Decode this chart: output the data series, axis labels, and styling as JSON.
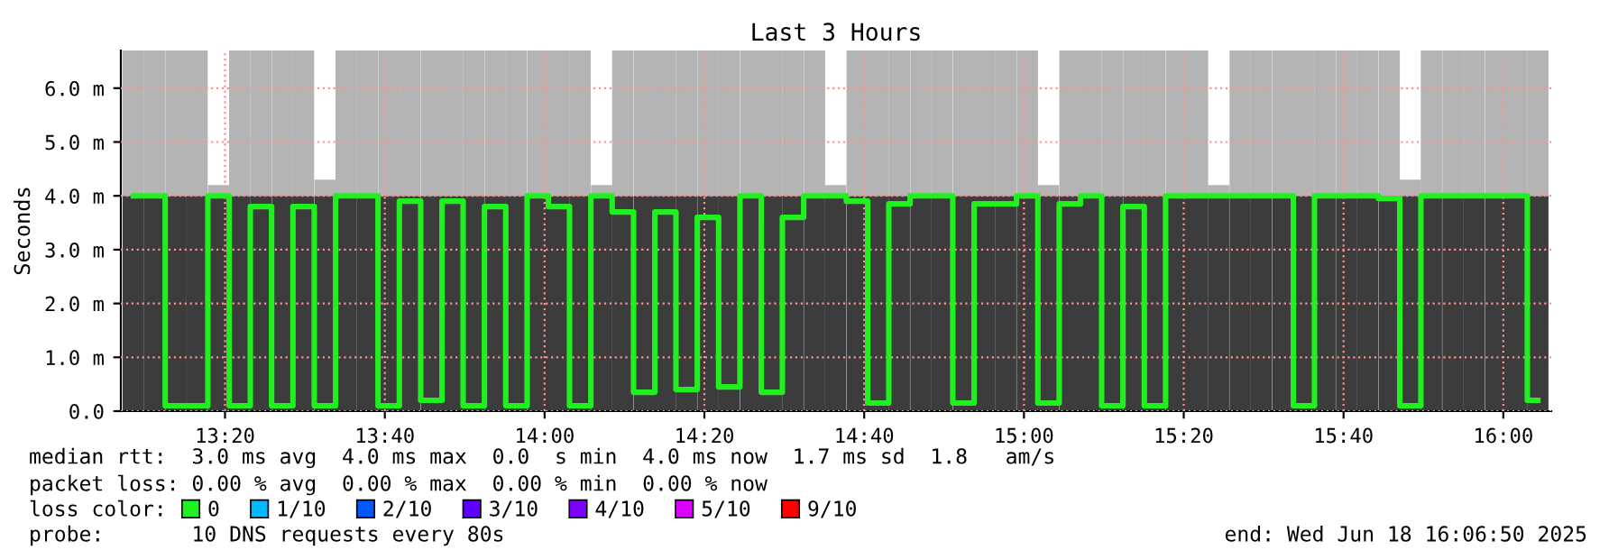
{
  "chart_data": {
    "type": "bar",
    "title": "Last 3 Hours",
    "ylabel": "Seconds",
    "stacked": true,
    "x": [
      13.142,
      13.186,
      13.231,
      13.275,
      13.32,
      13.364,
      13.408,
      13.453,
      13.497,
      13.542,
      13.586,
      13.63,
      13.675,
      13.719,
      13.764,
      13.808,
      13.852,
      13.897,
      13.941,
      13.986,
      14.03,
      14.074,
      14.119,
      14.163,
      14.208,
      14.252,
      14.296,
      14.341,
      14.385,
      14.43,
      14.474,
      14.518,
      14.563,
      14.607,
      14.652,
      14.696,
      14.74,
      14.785,
      14.829,
      14.874,
      14.918,
      14.962,
      15.007,
      15.051,
      15.096,
      15.14,
      15.184,
      15.229,
      15.273,
      15.318,
      15.362,
      15.406,
      15.451,
      15.495,
      15.54,
      15.584,
      15.628,
      15.673,
      15.717,
      15.762,
      15.806,
      15.85,
      15.895,
      15.939,
      15.984,
      16.028,
      16.072
    ],
    "series": [
      {
        "color": "#3c3c3c",
        "values": [
          4.0,
          4.0,
          4.0,
          4.0,
          4.0,
          4.0,
          4.0,
          4.0,
          4.0,
          4.0,
          4.0,
          4.0,
          4.0,
          4.0,
          4.0,
          4.0,
          4.0,
          4.0,
          4.0,
          4.0,
          4.0,
          4.0,
          4.0,
          4.0,
          4.0,
          4.0,
          4.0,
          4.0,
          4.0,
          4.0,
          4.0,
          4.0,
          4.0,
          4.0,
          4.0,
          4.0,
          4.0,
          4.0,
          4.0,
          4.0,
          4.0,
          4.0,
          4.0,
          4.0,
          4.0,
          4.0,
          4.0,
          4.0,
          4.0,
          4.0,
          4.0,
          4.0,
          4.0,
          4.0,
          4.0,
          4.0,
          4.0,
          4.0,
          4.0,
          4.0,
          4.0,
          4.0,
          4.0,
          4.0,
          4.0,
          4.0,
          4.0
        ]
      },
      {
        "color": "#b4b4b4",
        "values": [
          2.7,
          2.7,
          2.7,
          2.7,
          0.2,
          2.7,
          2.7,
          2.7,
          2.7,
          0.3,
          2.7,
          2.7,
          2.7,
          2.7,
          2.7,
          2.7,
          2.7,
          2.7,
          2.7,
          2.7,
          2.7,
          2.7,
          0.2,
          2.7,
          2.7,
          2.7,
          2.7,
          2.7,
          2.7,
          2.7,
          2.7,
          2.7,
          2.7,
          0.2,
          2.7,
          2.7,
          2.7,
          2.7,
          2.7,
          2.7,
          2.7,
          2.7,
          2.7,
          0.2,
          2.7,
          2.7,
          2.7,
          2.7,
          2.7,
          2.7,
          2.7,
          0.2,
          2.7,
          2.7,
          2.7,
          2.7,
          2.7,
          2.7,
          2.7,
          2.7,
          0.3,
          2.7,
          2.7,
          2.7,
          2.7,
          2.7,
          2.7
        ]
      },
      {
        "type": "step",
        "name": "0",
        "color": "#20f020",
        "values": [
          4.0,
          4.0,
          0.1,
          0.1,
          4.0,
          0.1,
          3.8,
          0.1,
          3.8,
          0.1,
          4.0,
          4.0,
          0.1,
          3.9,
          0.2,
          3.9,
          0.1,
          3.8,
          0.1,
          4.0,
          3.8,
          0.1,
          4.0,
          3.7,
          0.35,
          3.7,
          0.4,
          3.6,
          0.45,
          4.0,
          0.35,
          3.6,
          4.0,
          4.0,
          3.9,
          0.15,
          3.85,
          4.0,
          4.0,
          0.15,
          3.85,
          3.85,
          4.0,
          0.15,
          3.85,
          4.0,
          0.1,
          3.8,
          0.1,
          4.0,
          4.0,
          4.0,
          4.0,
          4.0,
          4.0,
          0.1,
          4.0,
          4.0,
          4.0,
          3.95,
          0.1,
          4.0,
          4.0,
          4.0,
          4.0,
          4.0,
          0.2
        ]
      },
      {
        "type": "step",
        "name": "1/10",
        "color": "#00b8ff",
        "values": [
          null,
          null,
          null,
          null,
          null,
          null,
          null,
          null,
          null,
          null,
          null,
          null,
          null,
          null,
          null,
          null,
          null,
          null,
          null,
          null,
          null,
          null,
          null,
          null,
          null,
          null,
          null,
          null,
          null,
          null,
          null,
          null,
          null,
          null,
          null,
          null,
          null,
          null,
          null,
          null,
          null,
          null,
          null,
          null,
          null,
          null,
          null,
          null,
          null,
          null,
          null,
          null,
          null,
          null,
          null,
          null,
          null,
          null,
          null,
          null,
          null,
          null,
          null,
          null,
          null,
          null,
          null
        ]
      },
      {
        "type": "step",
        "name": "2/10",
        "color": "#0059ff",
        "values": [
          null,
          null,
          null,
          null,
          null,
          null,
          null,
          null,
          null,
          null,
          null,
          null,
          null,
          null,
          null,
          null,
          null,
          null,
          null,
          null,
          null,
          null,
          null,
          null,
          null,
          null,
          null,
          null,
          null,
          null,
          null,
          null,
          null,
          null,
          null,
          null,
          null,
          null,
          null,
          null,
          null,
          null,
          null,
          null,
          null,
          null,
          null,
          null,
          null,
          null,
          null,
          null,
          null,
          null,
          null,
          null,
          null,
          null,
          null,
          null,
          null,
          null,
          null,
          null,
          null,
          null,
          null
        ]
      },
      {
        "type": "step",
        "name": "3/10",
        "color": "#5e00ff",
        "values": [
          null,
          null,
          null,
          null,
          null,
          null,
          null,
          null,
          null,
          null,
          null,
          null,
          null,
          null,
          null,
          null,
          null,
          null,
          null,
          null,
          null,
          null,
          null,
          null,
          null,
          null,
          null,
          null,
          null,
          null,
          null,
          null,
          null,
          null,
          null,
          null,
          null,
          null,
          null,
          null,
          null,
          null,
          null,
          null,
          null,
          null,
          null,
          null,
          null,
          null,
          null,
          null,
          null,
          null,
          null,
          null,
          null,
          null,
          null,
          null,
          null,
          null,
          null,
          null,
          null,
          null,
          null
        ]
      },
      {
        "type": "step",
        "name": "4/10",
        "color": "#7e00ff",
        "values": [
          null,
          null,
          null,
          null,
          null,
          null,
          null,
          null,
          null,
          null,
          null,
          null,
          null,
          null,
          null,
          null,
          null,
          null,
          null,
          null,
          null,
          null,
          null,
          null,
          null,
          null,
          null,
          null,
          null,
          null,
          null,
          null,
          null,
          null,
          null,
          null,
          null,
          null,
          null,
          null,
          null,
          null,
          null,
          null,
          null,
          null,
          null,
          null,
          null,
          null,
          null,
          null,
          null,
          null,
          null,
          null,
          null,
          null,
          null,
          null,
          null,
          null,
          null,
          null,
          null,
          null,
          null
        ]
      },
      {
        "type": "step",
        "name": "5/10",
        "color": "#dd00ff",
        "values": [
          null,
          null,
          null,
          null,
          null,
          null,
          null,
          null,
          null,
          null,
          null,
          null,
          null,
          null,
          null,
          null,
          null,
          null,
          null,
          null,
          null,
          null,
          null,
          null,
          null,
          null,
          null,
          null,
          null,
          null,
          null,
          null,
          null,
          null,
          null,
          null,
          null,
          null,
          null,
          null,
          null,
          null,
          null,
          null,
          null,
          null,
          null,
          null,
          null,
          null,
          null,
          null,
          null,
          null,
          null,
          null,
          null,
          null,
          null,
          null,
          null,
          null,
          null,
          null,
          null,
          null,
          null
        ]
      },
      {
        "type": "step",
        "name": "9/10",
        "color": "#ff0000",
        "values": [
          null,
          null,
          null,
          null,
          null,
          null,
          null,
          null,
          null,
          null,
          null,
          null,
          null,
          null,
          null,
          null,
          null,
          null,
          null,
          null,
          null,
          null,
          null,
          null,
          null,
          null,
          null,
          null,
          null,
          null,
          null,
          null,
          null,
          null,
          null,
          null,
          null,
          null,
          null,
          null,
          null,
          null,
          null,
          null,
          null,
          null,
          null,
          null,
          null,
          null,
          null,
          null,
          null,
          null,
          null,
          null,
          null,
          null,
          null,
          null,
          null,
          null,
          null,
          null,
          null,
          null,
          null
        ]
      }
    ],
    "legend": "bottom",
    "legend_title": "loss color:",
    "xlim": [
      13.116,
      16.1
    ],
    "xticks": [
      {
        "value": 13.3333,
        "label": "13:20"
      },
      {
        "value": 13.6667,
        "label": "13:40"
      },
      {
        "value": 14,
        "label": "14:00"
      },
      {
        "value": 14.3333,
        "label": "14:20"
      },
      {
        "value": 14.6667,
        "label": "14:40"
      },
      {
        "value": 15,
        "label": "15:00"
      },
      {
        "value": 15.3333,
        "label": "15:20"
      },
      {
        "value": 15.6667,
        "label": "15:40"
      },
      {
        "value": 16,
        "label": "16:00"
      }
    ],
    "ylim": [
      0,
      6.7
    ],
    "yticks": [
      {
        "value": 0,
        "label": "0.0"
      },
      {
        "value": 1,
        "label": "1.0 m"
      },
      {
        "value": 2,
        "label": "2.0 m"
      },
      {
        "value": 3,
        "label": "3.0 m"
      },
      {
        "value": 4,
        "label": "4.0 m"
      },
      {
        "value": 5,
        "label": "5.0 m"
      },
      {
        "value": 6,
        "label": "6.0 m"
      }
    ],
    "grid": true,
    "annotations": [
      "median rtt:  3.0 ms avg  4.0 ms max  0.0  s min  4.0 ms now  1.7 ms sd  1.8   am/s",
      "packet loss: 0.00 % avg  0.00 % max  0.00 % min  0.00 % now",
      "probe:       10 DNS requests every 80s",
      "end: Wed Jun 18 16:06:50 2025"
    ]
  }
}
